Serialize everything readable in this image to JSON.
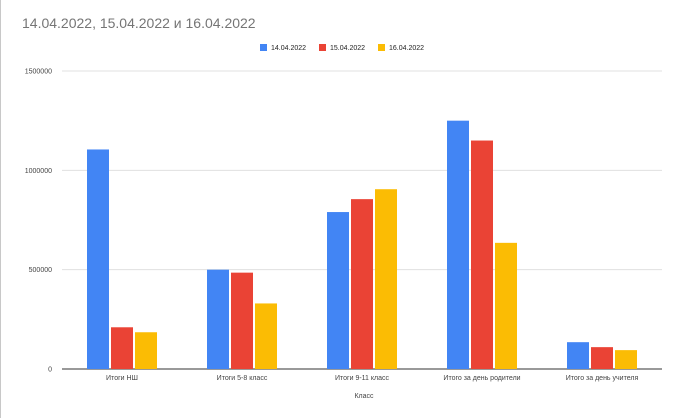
{
  "chart_data": {
    "type": "bar",
    "title": "14.04.2022, 15.04.2022 и 16.04.2022",
    "xlabel": "Класс",
    "ylabel": "",
    "ylim": [
      0,
      1500000
    ],
    "yticks": [
      "0",
      "500000",
      "1000000",
      "1500000"
    ],
    "ytick_values": [
      0,
      500000,
      1000000,
      1500000
    ],
    "grid": true,
    "legend_position": "top-center",
    "categories": [
      "Итоги НШ",
      "Итоги 5-8 класс",
      "Итоги 9-11 класс",
      "Итого за день родители",
      "Итого за день учителя"
    ],
    "series": [
      {
        "name": "14.04.2022",
        "color": "#4285F4",
        "values": [
          1105000,
          500000,
          790000,
          1250000,
          135000
        ]
      },
      {
        "name": "15.04.2022",
        "color": "#EA4335",
        "values": [
          210000,
          485000,
          855000,
          1150000,
          110000
        ]
      },
      {
        "name": "16.04.2022",
        "color": "#FBBC04",
        "values": [
          185000,
          330000,
          905000,
          635000,
          95000
        ]
      }
    ]
  }
}
